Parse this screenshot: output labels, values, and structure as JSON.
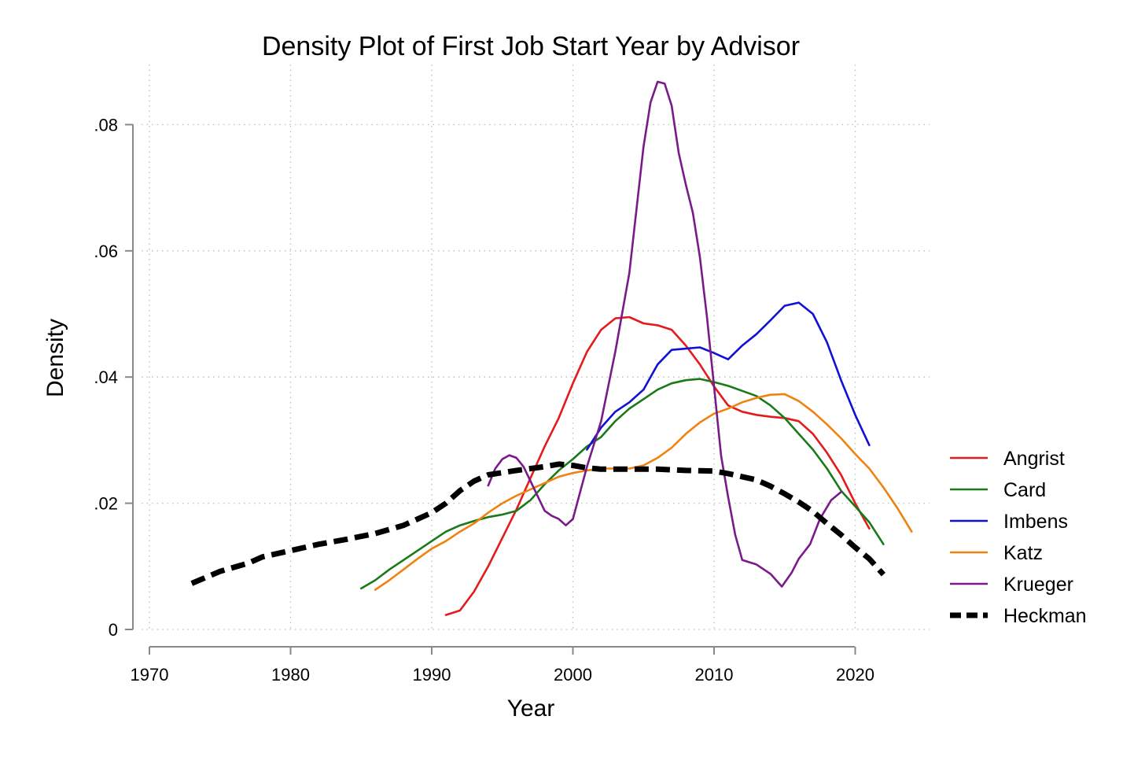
{
  "chart_data": {
    "type": "line",
    "title": "Density Plot of First Job Start Year by Advisor",
    "xlabel": "Year",
    "ylabel": "Density",
    "xlim": [
      1970,
      2025
    ],
    "ylim": [
      0,
      0.09
    ],
    "grid": true,
    "legend_position": "right",
    "x_ticks": [
      {
        "value": 1970,
        "label": "1970"
      },
      {
        "value": 1980,
        "label": "1980"
      },
      {
        "value": 1990,
        "label": "1990"
      },
      {
        "value": 2000,
        "label": "2000"
      },
      {
        "value": 2010,
        "label": "2010"
      },
      {
        "value": 2020,
        "label": "2020"
      }
    ],
    "y_ticks": [
      {
        "value": 0,
        "label": "0"
      },
      {
        "value": 0.02,
        "label": ".02"
      },
      {
        "value": 0.04,
        "label": ".04"
      },
      {
        "value": 0.06,
        "label": ".06"
      },
      {
        "value": 0.08,
        "label": ".08"
      }
    ],
    "series": [
      {
        "name": "Angrist",
        "color": "#e41a1c",
        "dashed": false,
        "points": [
          [
            1991,
            0.0023
          ],
          [
            1992,
            0.003
          ],
          [
            1993,
            0.006
          ],
          [
            1994,
            0.01
          ],
          [
            1995,
            0.0145
          ],
          [
            1996,
            0.019
          ],
          [
            1997,
            0.024
          ],
          [
            1998,
            0.029
          ],
          [
            1999,
            0.0335
          ],
          [
            2000,
            0.039
          ],
          [
            2001,
            0.044
          ],
          [
            2002,
            0.0475
          ],
          [
            2003,
            0.0493
          ],
          [
            2004,
            0.0495
          ],
          [
            2005,
            0.0485
          ],
          [
            2006,
            0.0482
          ],
          [
            2007,
            0.0475
          ],
          [
            2008,
            0.045
          ],
          [
            2009,
            0.042
          ],
          [
            2010,
            0.0385
          ],
          [
            2011,
            0.0355
          ],
          [
            2012,
            0.0345
          ],
          [
            2013,
            0.034
          ],
          [
            2014,
            0.0337
          ],
          [
            2015,
            0.0335
          ],
          [
            2016,
            0.033
          ],
          [
            2017,
            0.031
          ],
          [
            2018,
            0.028
          ],
          [
            2019,
            0.0245
          ],
          [
            2020,
            0.02
          ],
          [
            2021,
            0.016
          ]
        ]
      },
      {
        "name": "Card",
        "color": "#1a7a1a",
        "dashed": false,
        "points": [
          [
            1985,
            0.0065
          ],
          [
            1986,
            0.0078
          ],
          [
            1987,
            0.0095
          ],
          [
            1988,
            0.011
          ],
          [
            1989,
            0.0125
          ],
          [
            1990,
            0.014
          ],
          [
            1991,
            0.0155
          ],
          [
            1992,
            0.0165
          ],
          [
            1993,
            0.0172
          ],
          [
            1994,
            0.0178
          ],
          [
            1995,
            0.0182
          ],
          [
            1996,
            0.0188
          ],
          [
            1997,
            0.0205
          ],
          [
            1998,
            0.023
          ],
          [
            1999,
            0.0252
          ],
          [
            2000,
            0.027
          ],
          [
            2001,
            0.029
          ],
          [
            2002,
            0.0305
          ],
          [
            2003,
            0.033
          ],
          [
            2004,
            0.035
          ],
          [
            2005,
            0.0365
          ],
          [
            2006,
            0.038
          ],
          [
            2007,
            0.039
          ],
          [
            2008,
            0.0395
          ],
          [
            2009,
            0.0397
          ],
          [
            2010,
            0.0392
          ],
          [
            2011,
            0.0386
          ],
          [
            2012,
            0.0378
          ],
          [
            2013,
            0.037
          ],
          [
            2014,
            0.0355
          ],
          [
            2015,
            0.0335
          ],
          [
            2016,
            0.031
          ],
          [
            2017,
            0.0285
          ],
          [
            2018,
            0.0255
          ],
          [
            2019,
            0.022
          ],
          [
            2020,
            0.0195
          ],
          [
            2021,
            0.017
          ],
          [
            2022,
            0.0135
          ]
        ]
      },
      {
        "name": "Imbens",
        "color": "#1010d8",
        "dashed": false,
        "points": [
          [
            2001,
            0.0285
          ],
          [
            2002,
            0.032
          ],
          [
            2003,
            0.0345
          ],
          [
            2004,
            0.036
          ],
          [
            2005,
            0.038
          ],
          [
            2006,
            0.042
          ],
          [
            2007,
            0.0443
          ],
          [
            2008,
            0.0445
          ],
          [
            2009,
            0.0447
          ],
          [
            2010,
            0.0438
          ],
          [
            2011,
            0.0428
          ],
          [
            2012,
            0.045
          ],
          [
            2013,
            0.0468
          ],
          [
            2014,
            0.049
          ],
          [
            2015,
            0.0513
          ],
          [
            2016,
            0.0518
          ],
          [
            2017,
            0.05
          ],
          [
            2018,
            0.0455
          ],
          [
            2019,
            0.0395
          ],
          [
            2020,
            0.034
          ],
          [
            2021,
            0.0292
          ]
        ]
      },
      {
        "name": "Katz",
        "color": "#f0820f",
        "dashed": false,
        "points": [
          [
            1986,
            0.0063
          ],
          [
            1987,
            0.0078
          ],
          [
            1988,
            0.0095
          ],
          [
            1989,
            0.0112
          ],
          [
            1990,
            0.0128
          ],
          [
            1991,
            0.014
          ],
          [
            1992,
            0.0155
          ],
          [
            1993,
            0.0168
          ],
          [
            1994,
            0.0185
          ],
          [
            1995,
            0.02
          ],
          [
            1996,
            0.0212
          ],
          [
            1997,
            0.0222
          ],
          [
            1998,
            0.0232
          ],
          [
            1999,
            0.0242
          ],
          [
            2000,
            0.0248
          ],
          [
            2001,
            0.0252
          ],
          [
            2002,
            0.0255
          ],
          [
            2003,
            0.0255
          ],
          [
            2004,
            0.0255
          ],
          [
            2005,
            0.026
          ],
          [
            2006,
            0.0272
          ],
          [
            2007,
            0.0288
          ],
          [
            2008,
            0.031
          ],
          [
            2009,
            0.0328
          ],
          [
            2010,
            0.0342
          ],
          [
            2011,
            0.035
          ],
          [
            2012,
            0.036
          ],
          [
            2013,
            0.0367
          ],
          [
            2014,
            0.0372
          ],
          [
            2015,
            0.0373
          ],
          [
            2016,
            0.0362
          ],
          [
            2017,
            0.0345
          ],
          [
            2018,
            0.0325
          ],
          [
            2019,
            0.0303
          ],
          [
            2020,
            0.0278
          ],
          [
            2021,
            0.0255
          ],
          [
            2022,
            0.0225
          ],
          [
            2023,
            0.0192
          ],
          [
            2024,
            0.0155
          ]
        ]
      },
      {
        "name": "Krueger",
        "color": "#7a1a8a",
        "dashed": false,
        "points": [
          [
            1994,
            0.0228
          ],
          [
            1994.5,
            0.0255
          ],
          [
            1995,
            0.027
          ],
          [
            1995.5,
            0.0276
          ],
          [
            1996,
            0.0272
          ],
          [
            1996.5,
            0.0258
          ],
          [
            1997,
            0.0235
          ],
          [
            1998,
            0.0188
          ],
          [
            1998.5,
            0.018
          ],
          [
            1999,
            0.0175
          ],
          [
            1999.5,
            0.0165
          ],
          [
            2000,
            0.0175
          ],
          [
            2001,
            0.0258
          ],
          [
            2002,
            0.033
          ],
          [
            2003,
            0.044
          ],
          [
            2004,
            0.0565
          ],
          [
            2004.5,
            0.0665
          ],
          [
            2005,
            0.0765
          ],
          [
            2005.5,
            0.0835
          ],
          [
            2006,
            0.0868
          ],
          [
            2006.5,
            0.0865
          ],
          [
            2007,
            0.083
          ],
          [
            2007.5,
            0.0755
          ],
          [
            2008,
            0.0705
          ],
          [
            2008.5,
            0.066
          ],
          [
            2009,
            0.059
          ],
          [
            2009.5,
            0.0495
          ],
          [
            2010,
            0.0385
          ],
          [
            2010.5,
            0.0275
          ],
          [
            2011,
            0.021
          ],
          [
            2011.5,
            0.015
          ],
          [
            2012,
            0.011
          ],
          [
            2013,
            0.0103
          ],
          [
            2014,
            0.0088
          ],
          [
            2014.8,
            0.0068
          ],
          [
            2015.5,
            0.009
          ],
          [
            2016,
            0.0112
          ],
          [
            2016.8,
            0.0135
          ],
          [
            2017.5,
            0.0175
          ],
          [
            2018.3,
            0.0205
          ],
          [
            2019,
            0.0218
          ]
        ]
      },
      {
        "name": "Heckman",
        "color": "#000000",
        "dashed": true,
        "points": [
          [
            1973,
            0.0073
          ],
          [
            1975,
            0.0092
          ],
          [
            1977,
            0.0105
          ],
          [
            1978,
            0.0115
          ],
          [
            1980,
            0.0125
          ],
          [
            1982,
            0.0135
          ],
          [
            1984,
            0.0143
          ],
          [
            1986,
            0.0152
          ],
          [
            1988,
            0.0165
          ],
          [
            1990,
            0.0185
          ],
          [
            1991,
            0.02
          ],
          [
            1992,
            0.022
          ],
          [
            1993,
            0.0235
          ],
          [
            1994,
            0.0245
          ],
          [
            1996,
            0.0252
          ],
          [
            1998,
            0.0258
          ],
          [
            1999,
            0.0262
          ],
          [
            2000,
            0.026
          ],
          [
            2001,
            0.0256
          ],
          [
            2002,
            0.0254
          ],
          [
            2004,
            0.0254
          ],
          [
            2006,
            0.0254
          ],
          [
            2008,
            0.0252
          ],
          [
            2010,
            0.0251
          ],
          [
            2011,
            0.0247
          ],
          [
            2012,
            0.0242
          ],
          [
            2013,
            0.0237
          ],
          [
            2014,
            0.0227
          ],
          [
            2015,
            0.0215
          ],
          [
            2016,
            0.0202
          ],
          [
            2017,
            0.0187
          ],
          [
            2018,
            0.0168
          ],
          [
            2019,
            0.015
          ],
          [
            2020,
            0.013
          ],
          [
            2021,
            0.0112
          ],
          [
            2022,
            0.0087
          ]
        ]
      }
    ]
  }
}
